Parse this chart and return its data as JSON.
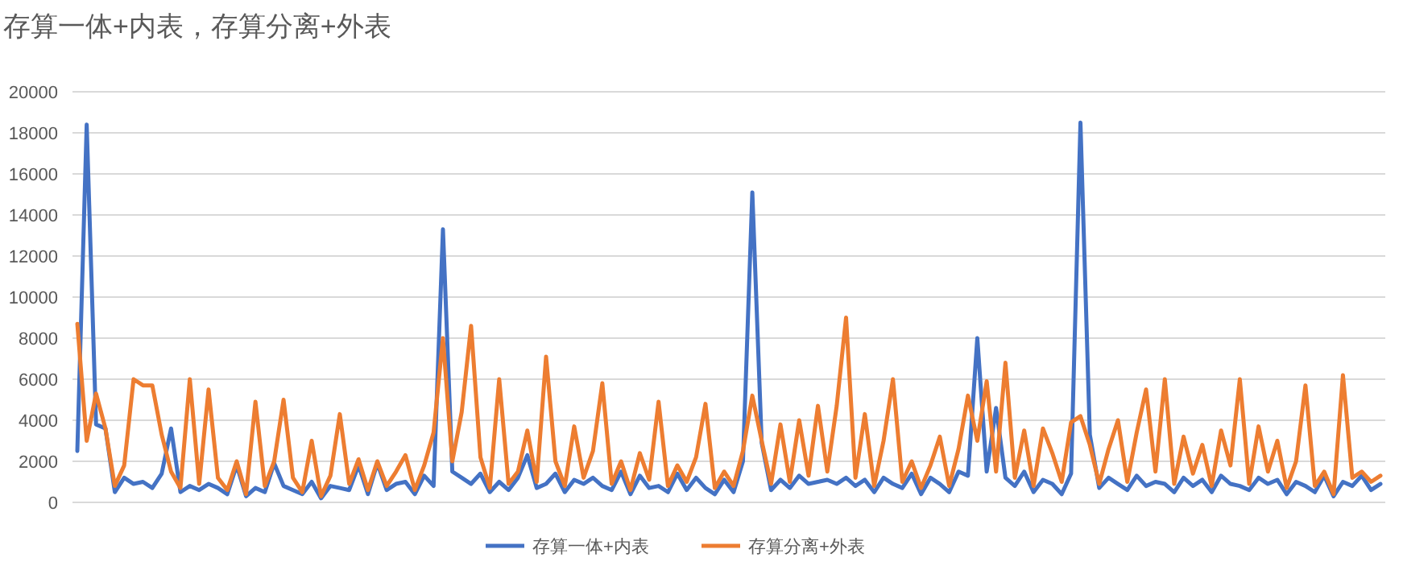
{
  "chart_data": {
    "type": "line",
    "title": "存算一体+内表，存算分离+外表",
    "categories": [
      null,
      null,
      null,
      null,
      null,
      null,
      null,
      null,
      null,
      null,
      null,
      null,
      null,
      null,
      null,
      null,
      null,
      null,
      null,
      null,
      null,
      null,
      null,
      null,
      null,
      null,
      null,
      null,
      null,
      null,
      null,
      null,
      null,
      null,
      null,
      null,
      null,
      null,
      null,
      null,
      null,
      null,
      null,
      null,
      null,
      null,
      null,
      null,
      null,
      null,
      null,
      null,
      null,
      null,
      null,
      null,
      null,
      null,
      null,
      null,
      null,
      null,
      null,
      null,
      null,
      null,
      null,
      null,
      null,
      null,
      null,
      null,
      null,
      null,
      null,
      null,
      null,
      null,
      null,
      null,
      null,
      null,
      null,
      null,
      null,
      null,
      null,
      null,
      null,
      null,
      null,
      null,
      null,
      null,
      null,
      null,
      null,
      null,
      null,
      null,
      null,
      null,
      null,
      null,
      null,
      null,
      null,
      null,
      null,
      null,
      null,
      null,
      null,
      null,
      null,
      null,
      null,
      null,
      null,
      null,
      null,
      null,
      null,
      null,
      null,
      null,
      null,
      null,
      null,
      null,
      null,
      null,
      null,
      null,
      null,
      null,
      null,
      null,
      null,
      null
    ],
    "series": [
      {
        "name": "存算一体+内表",
        "color": "#4472c4",
        "values": [
          2500,
          18400,
          3800,
          3600,
          500,
          1200,
          900,
          1000,
          700,
          1400,
          3600,
          500,
          800,
          600,
          900,
          700,
          400,
          1800,
          300,
          700,
          500,
          1900,
          800,
          600,
          400,
          1000,
          200,
          800,
          700,
          600,
          1800,
          400,
          1900,
          600,
          900,
          1000,
          400,
          1300,
          800,
          13300,
          1500,
          1200,
          900,
          1400,
          500,
          1000,
          600,
          1200,
          2300,
          700,
          900,
          1400,
          500,
          1100,
          900,
          1200,
          800,
          600,
          1500,
          400,
          1300,
          700,
          800,
          500,
          1400,
          600,
          1200,
          700,
          400,
          1100,
          500,
          2000,
          15100,
          2900,
          600,
          1100,
          700,
          1300,
          900,
          1000,
          1100,
          900,
          1200,
          800,
          1100,
          500,
          1200,
          900,
          700,
          1400,
          400,
          1200,
          900,
          500,
          1500,
          1300,
          8000,
          1500,
          4600,
          1200,
          800,
          1500,
          500,
          1100,
          900,
          400,
          1400,
          18500,
          3300,
          700,
          1200,
          900,
          600,
          1300,
          800,
          1000,
          900,
          500,
          1200,
          800,
          1100,
          500,
          1300,
          900,
          800,
          600,
          1200,
          900,
          1100,
          400,
          1000,
          800,
          500,
          1300,
          300,
          1000,
          800,
          1300,
          600,
          900
        ]
      },
      {
        "name": "存算分离+外表",
        "color": "#ed7d31",
        "values": [
          8700,
          3000,
          5300,
          3600,
          800,
          1800,
          6000,
          5700,
          5700,
          3300,
          1500,
          700,
          6000,
          900,
          5500,
          1200,
          600,
          2000,
          400,
          4900,
          800,
          2000,
          5000,
          1200,
          500,
          3000,
          300,
          1300,
          4300,
          900,
          2100,
          600,
          2000,
          800,
          1500,
          2300,
          600,
          1800,
          3400,
          8000,
          2000,
          4400,
          8600,
          2200,
          700,
          6000,
          900,
          1500,
          3500,
          1000,
          7100,
          2000,
          800,
          3700,
          1200,
          2500,
          5800,
          900,
          2000,
          600,
          2400,
          1100,
          4900,
          800,
          1800,
          1000,
          2200,
          4800,
          700,
          1500,
          800,
          2500,
          5200,
          3000,
          900,
          3800,
          1000,
          4000,
          1300,
          4700,
          1500,
          4700,
          9000,
          1200,
          4300,
          800,
          3000,
          6000,
          1000,
          2000,
          700,
          1800,
          3200,
          800,
          2600,
          5200,
          3000,
          5900,
          1500,
          6800,
          1200,
          3500,
          800,
          3600,
          2400,
          1000,
          3900,
          4200,
          2800,
          900,
          2600,
          4000,
          1000,
          3400,
          5500,
          1500,
          6000,
          900,
          3200,
          1400,
          2800,
          800,
          3500,
          1800,
          6000,
          900,
          3700,
          1500,
          3000,
          700,
          2000,
          5700,
          800,
          1500,
          400,
          6200,
          1200,
          1500,
          1000,
          1300
        ]
      }
    ],
    "ylim": [
      0,
      20000
    ],
    "yticks": [
      0,
      2000,
      4000,
      6000,
      8000,
      10000,
      12000,
      14000,
      16000,
      18000,
      20000
    ],
    "grid": "y",
    "legend": "bottom",
    "tick_labels": "y"
  }
}
